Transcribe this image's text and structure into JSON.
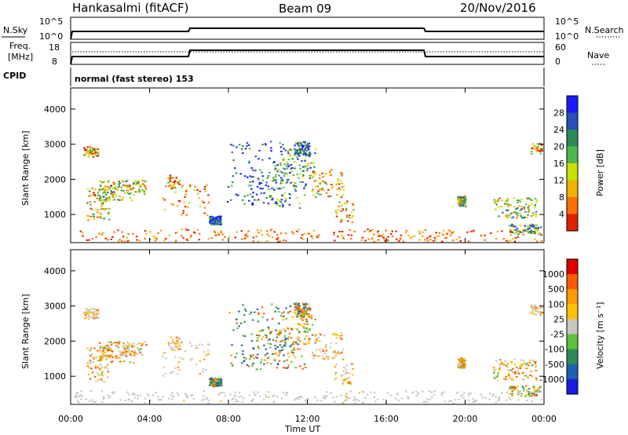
{
  "header": {
    "station": "Hankasalmi (fitACF)",
    "beam": "Beam 09",
    "date": "20/Nov/2016"
  },
  "top_panels": {
    "nsky_label": "N.Sky",
    "nsearch_label": "N.Search",
    "nsky_ticks": [
      "10^5",
      "10^0"
    ],
    "nsearch_ticks": [
      "10^5",
      "10^0"
    ],
    "freq_label_1": "Freq.",
    "freq_label_2": "[MHz]",
    "freq_ticks": [
      "18",
      "8"
    ],
    "nave_label": "Nave",
    "nave_ticks": [
      "60",
      "0"
    ],
    "cpid_label": "CPID",
    "cpid_text": "normal (fast stereo) 153"
  },
  "colors": {
    "power_scale": [
      "#1a1aff",
      "#2a4fb8",
      "#2e8b57",
      "#4fb84a",
      "#c8e000",
      "#f0b400",
      "#ff7000",
      "#e02000"
    ],
    "velocity_scale": [
      "#e00000",
      "#ff5a00",
      "#ff9a00",
      "#ffc000",
      "#c8c8c0",
      "#60c040",
      "#2e8b57",
      "#2060b0",
      "#1a1ae0"
    ]
  },
  "chart_data": [
    {
      "type": "heatmap",
      "name": "power",
      "ylabel": "Slant Range [km]",
      "ylim": [
        200,
        4600
      ],
      "yticks": [
        "4000",
        "3000",
        "2000",
        "1000"
      ],
      "xlim": [
        0,
        24
      ],
      "colorbar_label": "Power [dB]",
      "colorbar_ticks": [
        "28",
        "24",
        "20",
        "16",
        "12",
        "8",
        "4"
      ]
    },
    {
      "type": "heatmap",
      "name": "velocity",
      "ylabel": "Slant Range [km]",
      "ylim": [
        200,
        4600
      ],
      "yticks": [
        "4000",
        "3000",
        "2000",
        "1000"
      ],
      "xlabel": "Time UT",
      "xticks": [
        "00:00",
        "04:00",
        "08:00",
        "12:00",
        "16:00",
        "20:00",
        "00:00"
      ],
      "xlim": [
        0,
        24
      ],
      "colorbar_label": "Velocity [m s⁻¹]",
      "colorbar_ticks": [
        "1000",
        "500",
        "100",
        "25",
        "-25",
        "-100",
        "-500",
        "-1000"
      ]
    }
  ]
}
